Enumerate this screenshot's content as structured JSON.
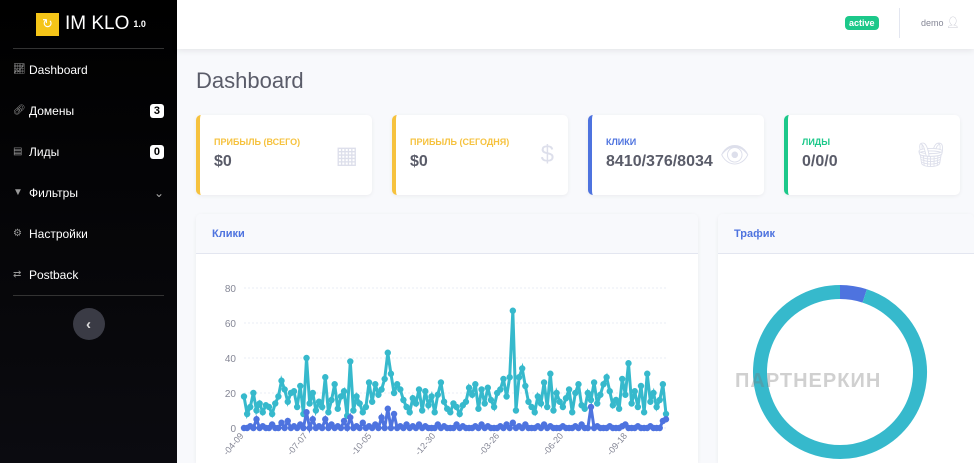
{
  "brand": {
    "name": "IM KLO",
    "version": "1.0"
  },
  "sidebar": {
    "items": [
      {
        "label": "Dashboard",
        "icon": "chart-line-icon"
      },
      {
        "label": "Домены",
        "icon": "link-icon",
        "badge": "3"
      },
      {
        "label": "Лиды",
        "icon": "basket-icon",
        "badge": "0"
      },
      {
        "label": "Фильтры",
        "icon": "filter-icon"
      },
      {
        "label": "Настройки",
        "icon": "gear-icon"
      },
      {
        "label": "Postback",
        "icon": "exchange-icon"
      }
    ]
  },
  "topbar": {
    "status": "active",
    "user": "demo"
  },
  "page_title": "Dashboard",
  "cards": [
    {
      "label": "Прибыль (всего)",
      "value": "$0",
      "color": "#f6c23e"
    },
    {
      "label": "Прибыль (сегодня)",
      "value": "$0",
      "color": "#f6c23e"
    },
    {
      "label": "Клики",
      "value": "8410/376/8034",
      "color": "#4e73df"
    },
    {
      "label": "Лиды",
      "value": "0/0/0",
      "color": "#1cc88a"
    }
  ],
  "clicks_panel": {
    "title": "Клики"
  },
  "traffic_panel": {
    "title": "Трафик"
  },
  "watermark": "ПАРТНЕРКИН",
  "chart_data": [
    {
      "type": "line",
      "title": "Клики",
      "ylim": [
        0,
        80
      ],
      "yticks": [
        "0",
        "20",
        "40",
        "60",
        "80"
      ],
      "xticks": [
        "-04-09",
        "-07-07",
        "-10-05",
        "-12-30",
        "-03-26",
        "-06-20",
        "-09-18"
      ],
      "series": [
        {
          "name": "clicks",
          "color": "#36b9cc",
          "values": [
            18,
            8,
            12,
            20,
            10,
            14,
            9,
            13,
            12,
            8,
            14,
            18,
            27,
            22,
            15,
            20,
            21,
            12,
            24,
            8,
            40,
            14,
            20,
            10,
            15,
            12,
            29,
            9,
            16,
            25,
            11,
            18,
            21,
            7,
            38,
            10,
            18,
            14,
            9,
            12,
            26,
            15,
            25,
            19,
            22,
            28,
            43,
            31,
            20,
            25,
            22,
            16,
            12,
            9,
            17,
            14,
            22,
            10,
            21,
            13,
            18,
            9,
            19,
            26,
            15,
            11,
            9,
            14,
            12,
            8,
            13,
            15,
            23,
            19,
            25,
            11,
            22,
            14,
            23,
            16,
            12,
            20,
            22,
            28,
            18,
            29,
            67,
            10,
            29,
            34,
            24,
            15,
            12,
            9,
            18,
            14,
            26,
            12,
            31,
            10,
            20,
            15,
            12,
            17,
            22,
            9,
            20,
            25,
            13,
            11,
            20,
            16,
            26,
            14,
            19,
            25,
            29,
            21,
            13,
            16,
            11,
            28,
            19,
            37,
            14,
            21,
            12,
            24,
            9,
            31,
            15,
            20,
            12,
            16,
            25,
            8
          ]
        },
        {
          "name": "leads",
          "color": "#4e73df",
          "values": [
            0,
            0,
            1,
            0,
            5,
            0,
            1,
            0,
            0,
            2,
            0,
            0,
            3,
            0,
            4,
            0,
            1,
            0,
            2,
            0,
            9,
            0,
            5,
            0,
            1,
            0,
            5,
            0,
            2,
            0,
            1,
            0,
            4,
            0,
            6,
            0,
            1,
            0,
            3,
            0,
            1,
            0,
            2,
            0,
            6,
            0,
            11,
            0,
            8,
            0,
            1,
            0,
            2,
            0,
            1,
            0,
            2,
            0,
            1,
            0,
            0,
            0,
            2,
            0,
            1,
            0,
            0,
            0,
            2,
            0,
            1,
            0,
            0,
            0,
            1,
            0,
            2,
            0,
            1,
            0,
            0,
            0,
            1,
            0,
            2,
            0,
            3,
            0,
            1,
            0,
            2,
            0,
            0,
            0,
            1,
            0,
            2,
            0,
            1,
            0,
            0,
            0,
            1,
            0,
            0,
            0,
            1,
            0,
            2,
            0,
            0,
            12,
            0,
            1,
            0,
            0,
            0,
            1,
            0,
            0,
            0,
            1,
            2,
            0,
            0,
            0,
            1,
            0,
            0,
            0,
            1,
            0,
            0,
            0,
            4,
            5
          ]
        }
      ]
    },
    {
      "type": "pie",
      "title": "Трафик",
      "series": [
        {
          "name": "blue",
          "value": 5,
          "color": "#4e73df"
        },
        {
          "name": "teal",
          "value": 95,
          "color": "#36b9cc"
        }
      ]
    }
  ]
}
